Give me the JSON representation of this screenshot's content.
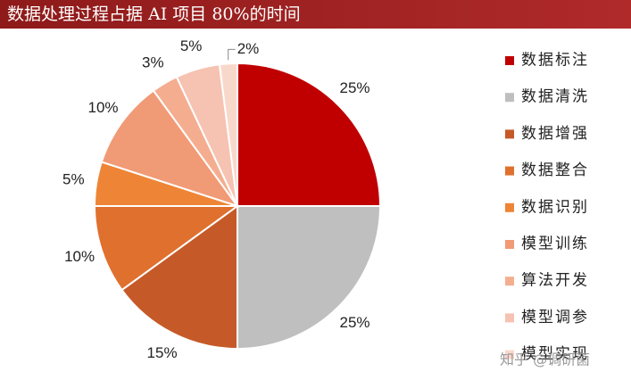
{
  "chart_data": {
    "type": "pie",
    "title": "数据处理过程占据 AI 项目 80%的时间",
    "categories": [
      "数据标注",
      "数据清洗",
      "数据增强",
      "数据整合",
      "数据识别",
      "模型训练",
      "算法开发",
      "模型调参",
      "模型实现"
    ],
    "values": [
      25,
      25,
      15,
      10,
      5,
      10,
      3,
      5,
      2
    ],
    "value_labels": [
      "25%",
      "25%",
      "15%",
      "10%",
      "5%",
      "10%",
      "3%",
      "5%",
      "2%"
    ],
    "colors": [
      "#c00000",
      "#bfbfbf",
      "#c55a28",
      "#e0702e",
      "#ee8536",
      "#f19a76",
      "#f4ae8f",
      "#f6c2b1",
      "#f9d8cc"
    ],
    "legend": "right",
    "watermark": "知乎 @调研菌"
  }
}
